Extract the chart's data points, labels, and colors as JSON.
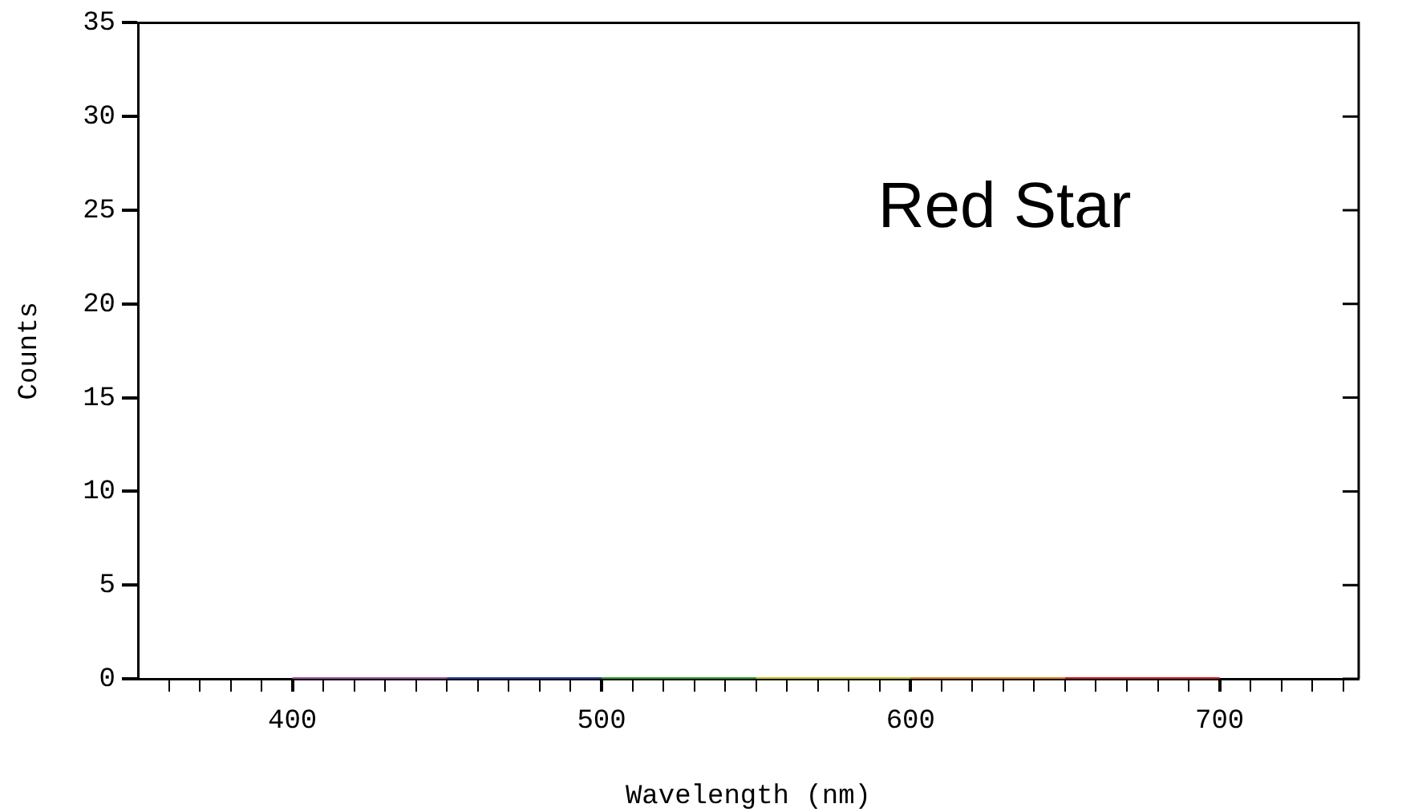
{
  "chart_data": {
    "type": "line",
    "xlabel": "Wavelength (nm)",
    "ylabel": "Counts",
    "annotations": [
      "Red Star"
    ],
    "xlim": [
      350,
      745
    ],
    "ylim": [
      0,
      35
    ],
    "xticks": [
      {
        "value": 360,
        "label": null
      },
      {
        "value": 370,
        "label": null
      },
      {
        "value": 380,
        "label": null
      },
      {
        "value": 390,
        "label": null
      },
      400,
      {
        "value": 410,
        "label": null
      },
      {
        "value": 420,
        "label": null
      },
      {
        "value": 430,
        "label": null
      },
      {
        "value": 440,
        "label": null
      },
      {
        "value": 450,
        "label": null
      },
      {
        "value": 460,
        "label": null
      },
      {
        "value": 470,
        "label": null
      },
      {
        "value": 480,
        "label": null
      },
      {
        "value": 490,
        "label": null
      },
      500,
      {
        "value": 510,
        "label": null
      },
      {
        "value": 520,
        "label": null
      },
      {
        "value": 530,
        "label": null
      },
      {
        "value": 540,
        "label": null
      },
      {
        "value": 550,
        "label": null
      },
      {
        "value": 560,
        "label": null
      },
      {
        "value": 570,
        "label": null
      },
      {
        "value": 580,
        "label": null
      },
      {
        "value": 590,
        "label": null
      },
      600,
      {
        "value": 610,
        "label": null
      },
      {
        "value": 620,
        "label": null
      },
      {
        "value": 630,
        "label": null
      },
      {
        "value": 640,
        "label": null
      },
      {
        "value": 650,
        "label": null
      },
      {
        "value": 660,
        "label": null
      },
      {
        "value": 670,
        "label": null
      },
      {
        "value": 680,
        "label": null
      },
      {
        "value": 690,
        "label": null
      },
      700,
      {
        "value": 710,
        "label": null
      },
      {
        "value": 720,
        "label": null
      },
      {
        "value": 730,
        "label": null
      },
      {
        "value": 740,
        "label": null
      }
    ],
    "yticks": [
      0,
      5,
      10,
      15,
      20,
      25,
      30,
      35
    ],
    "grid": false,
    "legend": false,
    "marker": "none",
    "line_style": "solid",
    "series": [
      {
        "color": "#a050a0",
        "x": [
          400,
          450
        ],
        "values": [
          0,
          0
        ]
      },
      {
        "color": "#3040a0",
        "x": [
          450,
          500
        ],
        "values": [
          0,
          0
        ]
      },
      {
        "color": "#30a030",
        "x": [
          500,
          550
        ],
        "values": [
          0,
          0
        ]
      },
      {
        "color": "#c8c020",
        "x": [
          550,
          600
        ],
        "values": [
          0,
          0
        ]
      },
      {
        "color": "#e08020",
        "x": [
          600,
          650
        ],
        "values": [
          0,
          0
        ]
      },
      {
        "color": "#d02020",
        "x": [
          650,
          700
        ],
        "values": [
          0,
          0
        ]
      }
    ]
  }
}
